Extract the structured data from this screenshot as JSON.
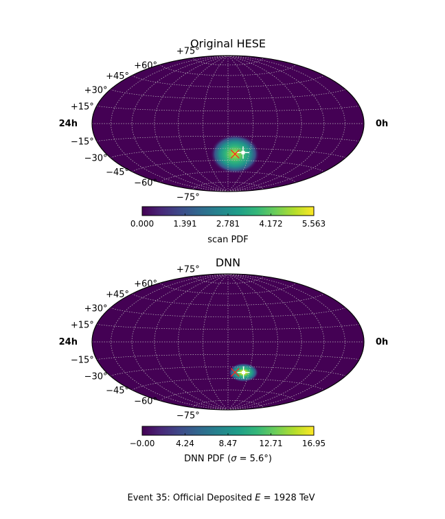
{
  "figure": {
    "caption": "Event 35:  Official Deposited E = 1928 TeV",
    "caption_prefix": "Event 35:  Official Deposited ",
    "caption_var": "E",
    "caption_suffix": " = 1928 TeV"
  },
  "colors": {
    "background": "#440154",
    "grid": "#bfbfbf",
    "outline": "#000000",
    "truth_marker": "#ff2020",
    "best_fit_marker": "#ffffff",
    "colormap": [
      "#440154",
      "#482878",
      "#3e4a89",
      "#31688e",
      "#26828e",
      "#1f9e89",
      "#35b779",
      "#6ece58",
      "#b5de2b",
      "#fde725"
    ]
  },
  "chart_data": [
    {
      "type": "heatmap",
      "projection": "hammer",
      "title": "Original HESE",
      "ra_labels": {
        "left": "24h",
        "right": "0h"
      },
      "dec_labels": [
        "+75°",
        "+60°",
        "+45°",
        "+30°",
        "+15°",
        "−15°",
        "−30°",
        "−45°",
        "−60°",
        "−75°"
      ],
      "colorbar": {
        "label": "scan PDF",
        "ticks": [
          "0.000",
          "1.391",
          "2.781",
          "4.172",
          "5.563"
        ],
        "range": [
          0.0,
          5.563
        ]
      },
      "hotspot": {
        "center_lon_deg": 10,
        "center_lat_deg": -37,
        "peak": 5.563
      },
      "best_fit": {
        "lon_deg": 21,
        "lat_deg": -35
      },
      "truth": {
        "lon_deg": 10,
        "lat_deg": -37
      }
    },
    {
      "type": "heatmap",
      "projection": "hammer",
      "title": "DNN",
      "ra_labels": {
        "left": "24h",
        "right": "0h"
      },
      "dec_labels": [
        "+75°",
        "+60°",
        "+45°",
        "+30°",
        "+15°",
        "−15°",
        "−30°",
        "−45°",
        "−60°",
        "−75°"
      ],
      "colorbar": {
        "label_prefix": "DNN PDF (",
        "label_var": "σ",
        "label_suffix": " = 5.6°)",
        "ticks": [
          "−0.00",
          "4.24",
          "8.47",
          "12.71",
          "16.95"
        ],
        "range": [
          0.0,
          16.95
        ]
      },
      "hotspot": {
        "center_lon_deg": 22,
        "center_lat_deg": -37,
        "peak": 16.95
      },
      "best_fit": {
        "lon_deg": 22,
        "lat_deg": -37
      },
      "truth": {
        "lon_deg": 10,
        "lat_deg": -37
      }
    }
  ]
}
